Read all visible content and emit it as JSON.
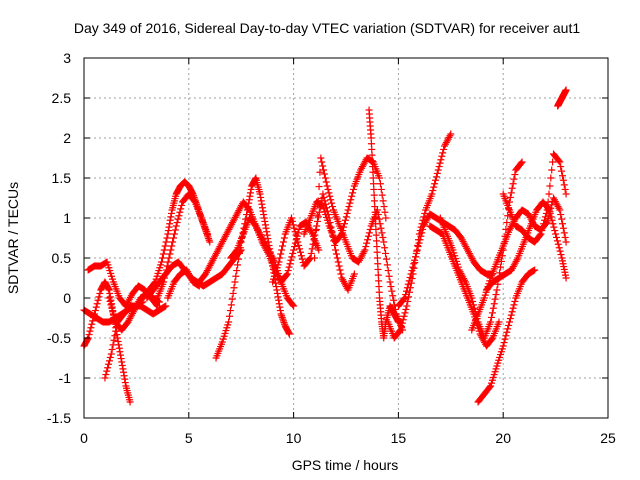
{
  "chart_data": {
    "type": "scatter",
    "title": "Day 349 of 2016, Sidereal Day-to-day VTEC variation (SDTVAR) for receiver aut1",
    "xlabel": "GPS time / hours",
    "ylabel": "SDTVAR / TECUs",
    "xlim": [
      0,
      25
    ],
    "ylim": [
      -1.5,
      3
    ],
    "x_ticks": [
      0,
      5,
      10,
      15,
      20,
      25
    ],
    "y_ticks": [
      -1.5,
      -1,
      -0.5,
      0,
      0.5,
      1,
      1.5,
      2,
      2.5,
      3
    ],
    "x_tick_labels": [
      "0",
      "5",
      "10",
      "15",
      "20",
      "25"
    ],
    "y_tick_labels": [
      "-1.5",
      "-1",
      "-0.5",
      "0",
      "0.5",
      "1",
      "1.5",
      "2",
      "2.5",
      "3"
    ],
    "grid": true,
    "marker": "plus",
    "color": "#ff0000",
    "series": [
      {
        "name": "s1",
        "x": [
          0.0,
          0.2,
          0.5,
          0.8,
          1.0,
          1.2,
          1.4,
          1.6,
          1.8,
          2.0,
          2.2
        ],
        "y": [
          -0.6,
          -0.5,
          -0.2,
          0.1,
          0.2,
          0.1,
          -0.2,
          -0.5,
          -0.8,
          -1.1,
          -1.3
        ]
      },
      {
        "name": "s2",
        "x": [
          0.0,
          0.3,
          0.6,
          0.9,
          1.2,
          1.5,
          1.8,
          2.1,
          2.4,
          2.7,
          3.0,
          3.3,
          3.6,
          3.9
        ],
        "y": [
          -0.15,
          -0.2,
          -0.25,
          -0.3,
          -0.3,
          -0.25,
          -0.2,
          -0.15,
          -0.1,
          -0.1,
          -0.15,
          -0.2,
          -0.15,
          -0.1
        ]
      },
      {
        "name": "s3",
        "x": [
          0.2,
          0.5,
          0.8,
          1.1,
          1.4,
          1.7,
          2.0,
          2.3,
          2.6,
          2.9,
          3.2,
          3.5
        ],
        "y": [
          0.35,
          0.4,
          0.4,
          0.45,
          0.2,
          0.0,
          -0.1,
          0.05,
          0.15,
          0.1,
          0.0,
          -0.1
        ]
      },
      {
        "name": "s4",
        "x": [
          1.0,
          1.3,
          1.6,
          1.9,
          2.2,
          2.5,
          2.8
        ],
        "y": [
          -1.0,
          -0.7,
          -0.3,
          -0.2,
          -0.1,
          -0.1,
          -0.05
        ]
      },
      {
        "name": "s5",
        "x": [
          1.2,
          1.5,
          1.8,
          2.1,
          2.4,
          2.7,
          3.0,
          3.3,
          3.6
        ],
        "y": [
          0.0,
          -0.3,
          -0.4,
          -0.3,
          -0.15,
          0.0,
          0.05,
          0.0,
          -0.05
        ]
      },
      {
        "name": "s6",
        "x": [
          2.5,
          2.8,
          3.1,
          3.4,
          3.7,
          4.0,
          4.2,
          4.4,
          4.6,
          4.8,
          5.0,
          5.2,
          5.4,
          5.6,
          5.8,
          6.0
        ],
        "y": [
          -0.1,
          0.0,
          0.1,
          0.2,
          0.45,
          0.8,
          1.1,
          1.3,
          1.4,
          1.45,
          1.4,
          1.3,
          1.15,
          1.0,
          0.85,
          0.7
        ]
      },
      {
        "name": "s7",
        "x": [
          3.5,
          3.8,
          4.1,
          4.4,
          4.7,
          5.0,
          5.3,
          5.6,
          5.9
        ],
        "y": [
          0.0,
          0.2,
          0.55,
          0.9,
          1.2,
          1.3,
          1.2,
          1.0,
          0.8
        ]
      },
      {
        "name": "s8",
        "x": [
          3.0,
          3.3,
          3.6,
          3.9,
          4.2,
          4.5,
          4.8,
          5.1,
          5.4,
          5.7,
          6.0,
          6.3,
          6.6,
          6.9,
          7.2,
          7.5
        ],
        "y": [
          0.0,
          0.1,
          0.2,
          0.3,
          0.4,
          0.45,
          0.35,
          0.25,
          0.2,
          0.15,
          0.2,
          0.25,
          0.3,
          0.4,
          0.5,
          0.6
        ]
      },
      {
        "name": "s9",
        "x": [
          4.0,
          4.3,
          4.6,
          4.9,
          5.2,
          5.5
        ],
        "y": [
          0.0,
          0.2,
          0.3,
          0.35,
          0.2,
          0.15
        ]
      },
      {
        "name": "s10",
        "x": [
          6.3,
          6.6,
          6.9,
          7.2,
          7.5,
          7.8,
          8.0,
          8.2,
          8.4,
          8.6,
          8.8,
          9.0,
          9.2,
          9.4,
          9.6,
          9.8
        ],
        "y": [
          -0.75,
          -0.55,
          -0.3,
          0.2,
          0.7,
          1.1,
          1.4,
          1.5,
          1.3,
          1.0,
          0.7,
          0.4,
          0.1,
          -0.2,
          -0.35,
          -0.45
        ]
      },
      {
        "name": "s11",
        "x": [
          5.5,
          5.8,
          6.1,
          6.4,
          6.7,
          7.0,
          7.3,
          7.6,
          7.9,
          8.2,
          8.5,
          8.8,
          9.1,
          9.4,
          9.7,
          10.0
        ],
        "y": [
          0.2,
          0.3,
          0.45,
          0.6,
          0.75,
          0.9,
          1.05,
          1.2,
          1.1,
          0.9,
          0.75,
          0.6,
          0.45,
          0.2,
          0.0,
          -0.1
        ]
      },
      {
        "name": "s12",
        "x": [
          7.0,
          7.3,
          7.6,
          7.9,
          8.2,
          8.5,
          8.8,
          9.1,
          9.4,
          9.7,
          10.0,
          10.3,
          10.6,
          10.9,
          11.2
        ],
        "y": [
          0.5,
          0.6,
          0.8,
          1.0,
          0.9,
          0.7,
          0.55,
          0.35,
          0.2,
          0.3,
          0.6,
          0.9,
          0.95,
          0.8,
          0.6
        ]
      },
      {
        "name": "s13",
        "x": [
          9.0,
          9.3,
          9.6,
          9.9,
          10.2,
          10.5,
          10.8,
          11.1,
          11.4,
          11.7,
          12.0,
          12.3,
          12.6,
          12.9
        ],
        "y": [
          0.2,
          0.45,
          0.8,
          1.0,
          0.7,
          0.4,
          0.5,
          0.9,
          1.3,
          1.0,
          0.6,
          0.25,
          0.1,
          0.3
        ]
      },
      {
        "name": "s14",
        "x": [
          10.5,
          10.8,
          11.1,
          11.4,
          11.7,
          12.0,
          12.3,
          12.6,
          12.9,
          13.2,
          13.5,
          13.8,
          14.1,
          14.4
        ],
        "y": [
          0.8,
          1.0,
          1.2,
          1.15,
          0.9,
          0.7,
          0.8,
          1.1,
          1.4,
          1.6,
          1.75,
          1.7,
          1.5,
          1.0
        ]
      },
      {
        "name": "s15",
        "x": [
          11.0,
          11.3,
          11.6,
          11.9,
          12.2,
          12.5,
          12.8,
          13.1,
          13.4,
          13.7,
          14.0,
          14.3,
          14.6,
          14.9,
          15.2
        ],
        "y": [
          0.5,
          1.75,
          1.4,
          1.1,
          0.9,
          0.7,
          0.5,
          0.45,
          0.6,
          0.9,
          1.1,
          0.7,
          0.2,
          -0.2,
          -0.4
        ]
      },
      {
        "name": "s16",
        "x": [
          13.6,
          13.7,
          13.8,
          13.9,
          14.0,
          14.1,
          14.2,
          14.3,
          14.4,
          14.6,
          14.8,
          15.0
        ],
        "y": [
          2.35,
          2.0,
          1.5,
          1.0,
          0.5,
          0.0,
          -0.3,
          -0.5,
          -0.3,
          -0.1,
          -0.2,
          -0.3
        ]
      },
      {
        "name": "s17",
        "x": [
          14.5,
          14.8,
          15.1,
          15.4,
          15.7,
          16.0,
          16.3,
          16.6,
          16.9,
          17.2,
          17.5
        ],
        "y": [
          -0.3,
          -0.5,
          -0.4,
          -0.1,
          0.3,
          0.8,
          1.1,
          1.3,
          1.6,
          1.9,
          2.05
        ]
      },
      {
        "name": "s18",
        "x": [
          15.0,
          15.3,
          15.6,
          15.9,
          16.2,
          16.5,
          16.8,
          17.1,
          17.4,
          17.7,
          18.0,
          18.3,
          18.6,
          18.9,
          19.2,
          19.5
        ],
        "y": [
          -0.1,
          0.0,
          0.3,
          0.6,
          0.9,
          1.05,
          1.0,
          0.95,
          0.9,
          0.85,
          0.75,
          0.6,
          0.45,
          0.35,
          0.3,
          0.3
        ]
      },
      {
        "name": "s19",
        "x": [
          16.5,
          16.8,
          17.1,
          17.4,
          17.7,
          18.0,
          18.3,
          18.6,
          18.9,
          19.2,
          19.5,
          19.8
        ],
        "y": [
          0.9,
          0.85,
          0.8,
          0.6,
          0.4,
          0.2,
          0.0,
          -0.2,
          -0.45,
          -0.6,
          -0.5,
          -0.3
        ]
      },
      {
        "name": "s20",
        "x": [
          17.0,
          17.3,
          17.6,
          17.9,
          18.2,
          18.5,
          18.8,
          19.1,
          19.4,
          19.7,
          20.0,
          20.3,
          20.6,
          20.9
        ],
        "y": [
          1.0,
          0.8,
          0.6,
          0.35,
          0.2,
          0.0,
          -0.3,
          -0.5,
          -0.3,
          0.1,
          0.6,
          1.2,
          1.6,
          1.7
        ]
      },
      {
        "name": "s21",
        "x": [
          18.8,
          19.1,
          19.4,
          19.7,
          20.0,
          20.3,
          20.6,
          20.9,
          21.2,
          21.5
        ],
        "y": [
          -1.3,
          -1.2,
          -1.1,
          -0.85,
          -0.6,
          -0.3,
          0.0,
          0.2,
          0.3,
          0.35
        ]
      },
      {
        "name": "s22",
        "x": [
          18.5,
          18.8,
          19.1,
          19.4,
          19.7,
          20.0,
          20.3,
          20.6,
          20.9,
          21.2,
          21.5,
          21.8,
          22.1,
          22.4,
          22.7,
          23.0
        ],
        "y": [
          -0.4,
          -0.2,
          0.0,
          0.25,
          0.45,
          0.65,
          0.85,
          1.0,
          1.1,
          1.05,
          0.9,
          0.85,
          0.95,
          1.25,
          1.1,
          0.7
        ]
      },
      {
        "name": "s23",
        "x": [
          19.2,
          19.5,
          19.8,
          20.1,
          20.4,
          20.7,
          21.0,
          21.3,
          21.6,
          21.9,
          22.2,
          22.5,
          22.8,
          23.0
        ],
        "y": [
          0.1,
          0.2,
          0.25,
          0.3,
          0.35,
          0.5,
          0.7,
          0.9,
          1.1,
          1.2,
          1.1,
          0.8,
          0.5,
          0.25
        ]
      },
      {
        "name": "s24",
        "x": [
          20.0,
          20.3,
          20.6,
          20.9,
          21.2,
          21.5,
          21.8,
          22.1,
          22.4,
          22.7,
          23.0
        ],
        "y": [
          1.3,
          1.1,
          0.9,
          0.85,
          0.75,
          0.7,
          0.8,
          1.1,
          1.8,
          1.7,
          1.3
        ]
      },
      {
        "name": "s25",
        "x": [
          22.6,
          22.7,
          22.8,
          22.9,
          23.0
        ],
        "y": [
          2.4,
          2.45,
          2.5,
          2.55,
          2.6
        ]
      }
    ]
  }
}
